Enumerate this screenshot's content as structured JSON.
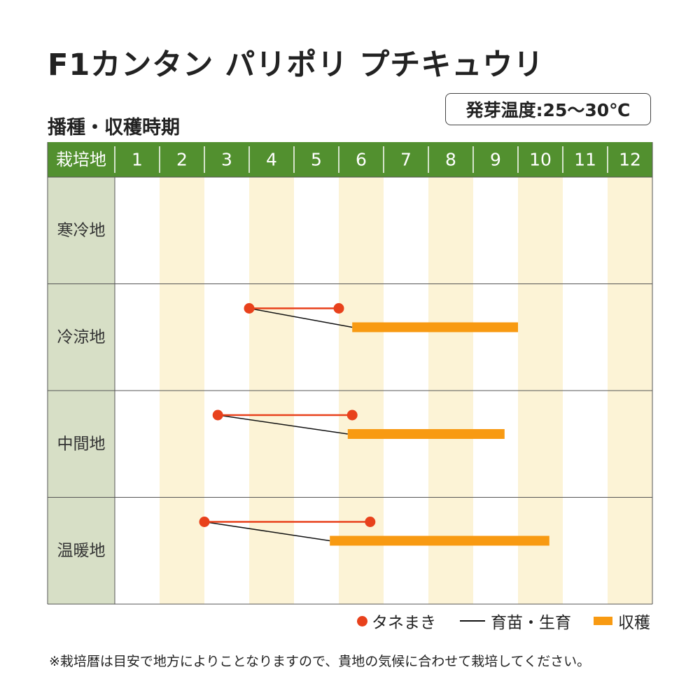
{
  "title": "F1カンタン パリポリ プチキュウリ",
  "subtitle": "播種・収穫時期",
  "temperature_badge": "発芽温度:25〜30℃",
  "colors": {
    "header_green": "#52902f",
    "row_label_bg": "#d7dfc6",
    "stripe": "#fcf3d6",
    "sowing": "#e8411c",
    "growing": "#111111",
    "harvest": "#f89a12",
    "grid": "#555555"
  },
  "chart_data": {
    "type": "gantt",
    "header_label": "栽培地",
    "months": [
      "1",
      "2",
      "3",
      "4",
      "5",
      "6",
      "7",
      "8",
      "9",
      "10",
      "11",
      "12"
    ],
    "rows": [
      {
        "region": "寒冷地",
        "sowing": null,
        "harvest": null
      },
      {
        "region": "冷涼地",
        "sowing": [
          4.0,
          6.0
        ],
        "harvest": [
          6.3,
          10.0
        ]
      },
      {
        "region": "中間地",
        "sowing": [
          3.3,
          6.3
        ],
        "harvest": [
          6.2,
          9.7
        ]
      },
      {
        "region": "温暖地",
        "sowing": [
          3.0,
          6.7
        ],
        "harvest": [
          5.8,
          10.7
        ]
      }
    ],
    "legend": [
      "タネまき",
      "育苗・生育",
      "収穫"
    ]
  },
  "note": "※栽培暦は目安で地方によりことなりますので、貴地の気候に合わせて栽培してください。"
}
